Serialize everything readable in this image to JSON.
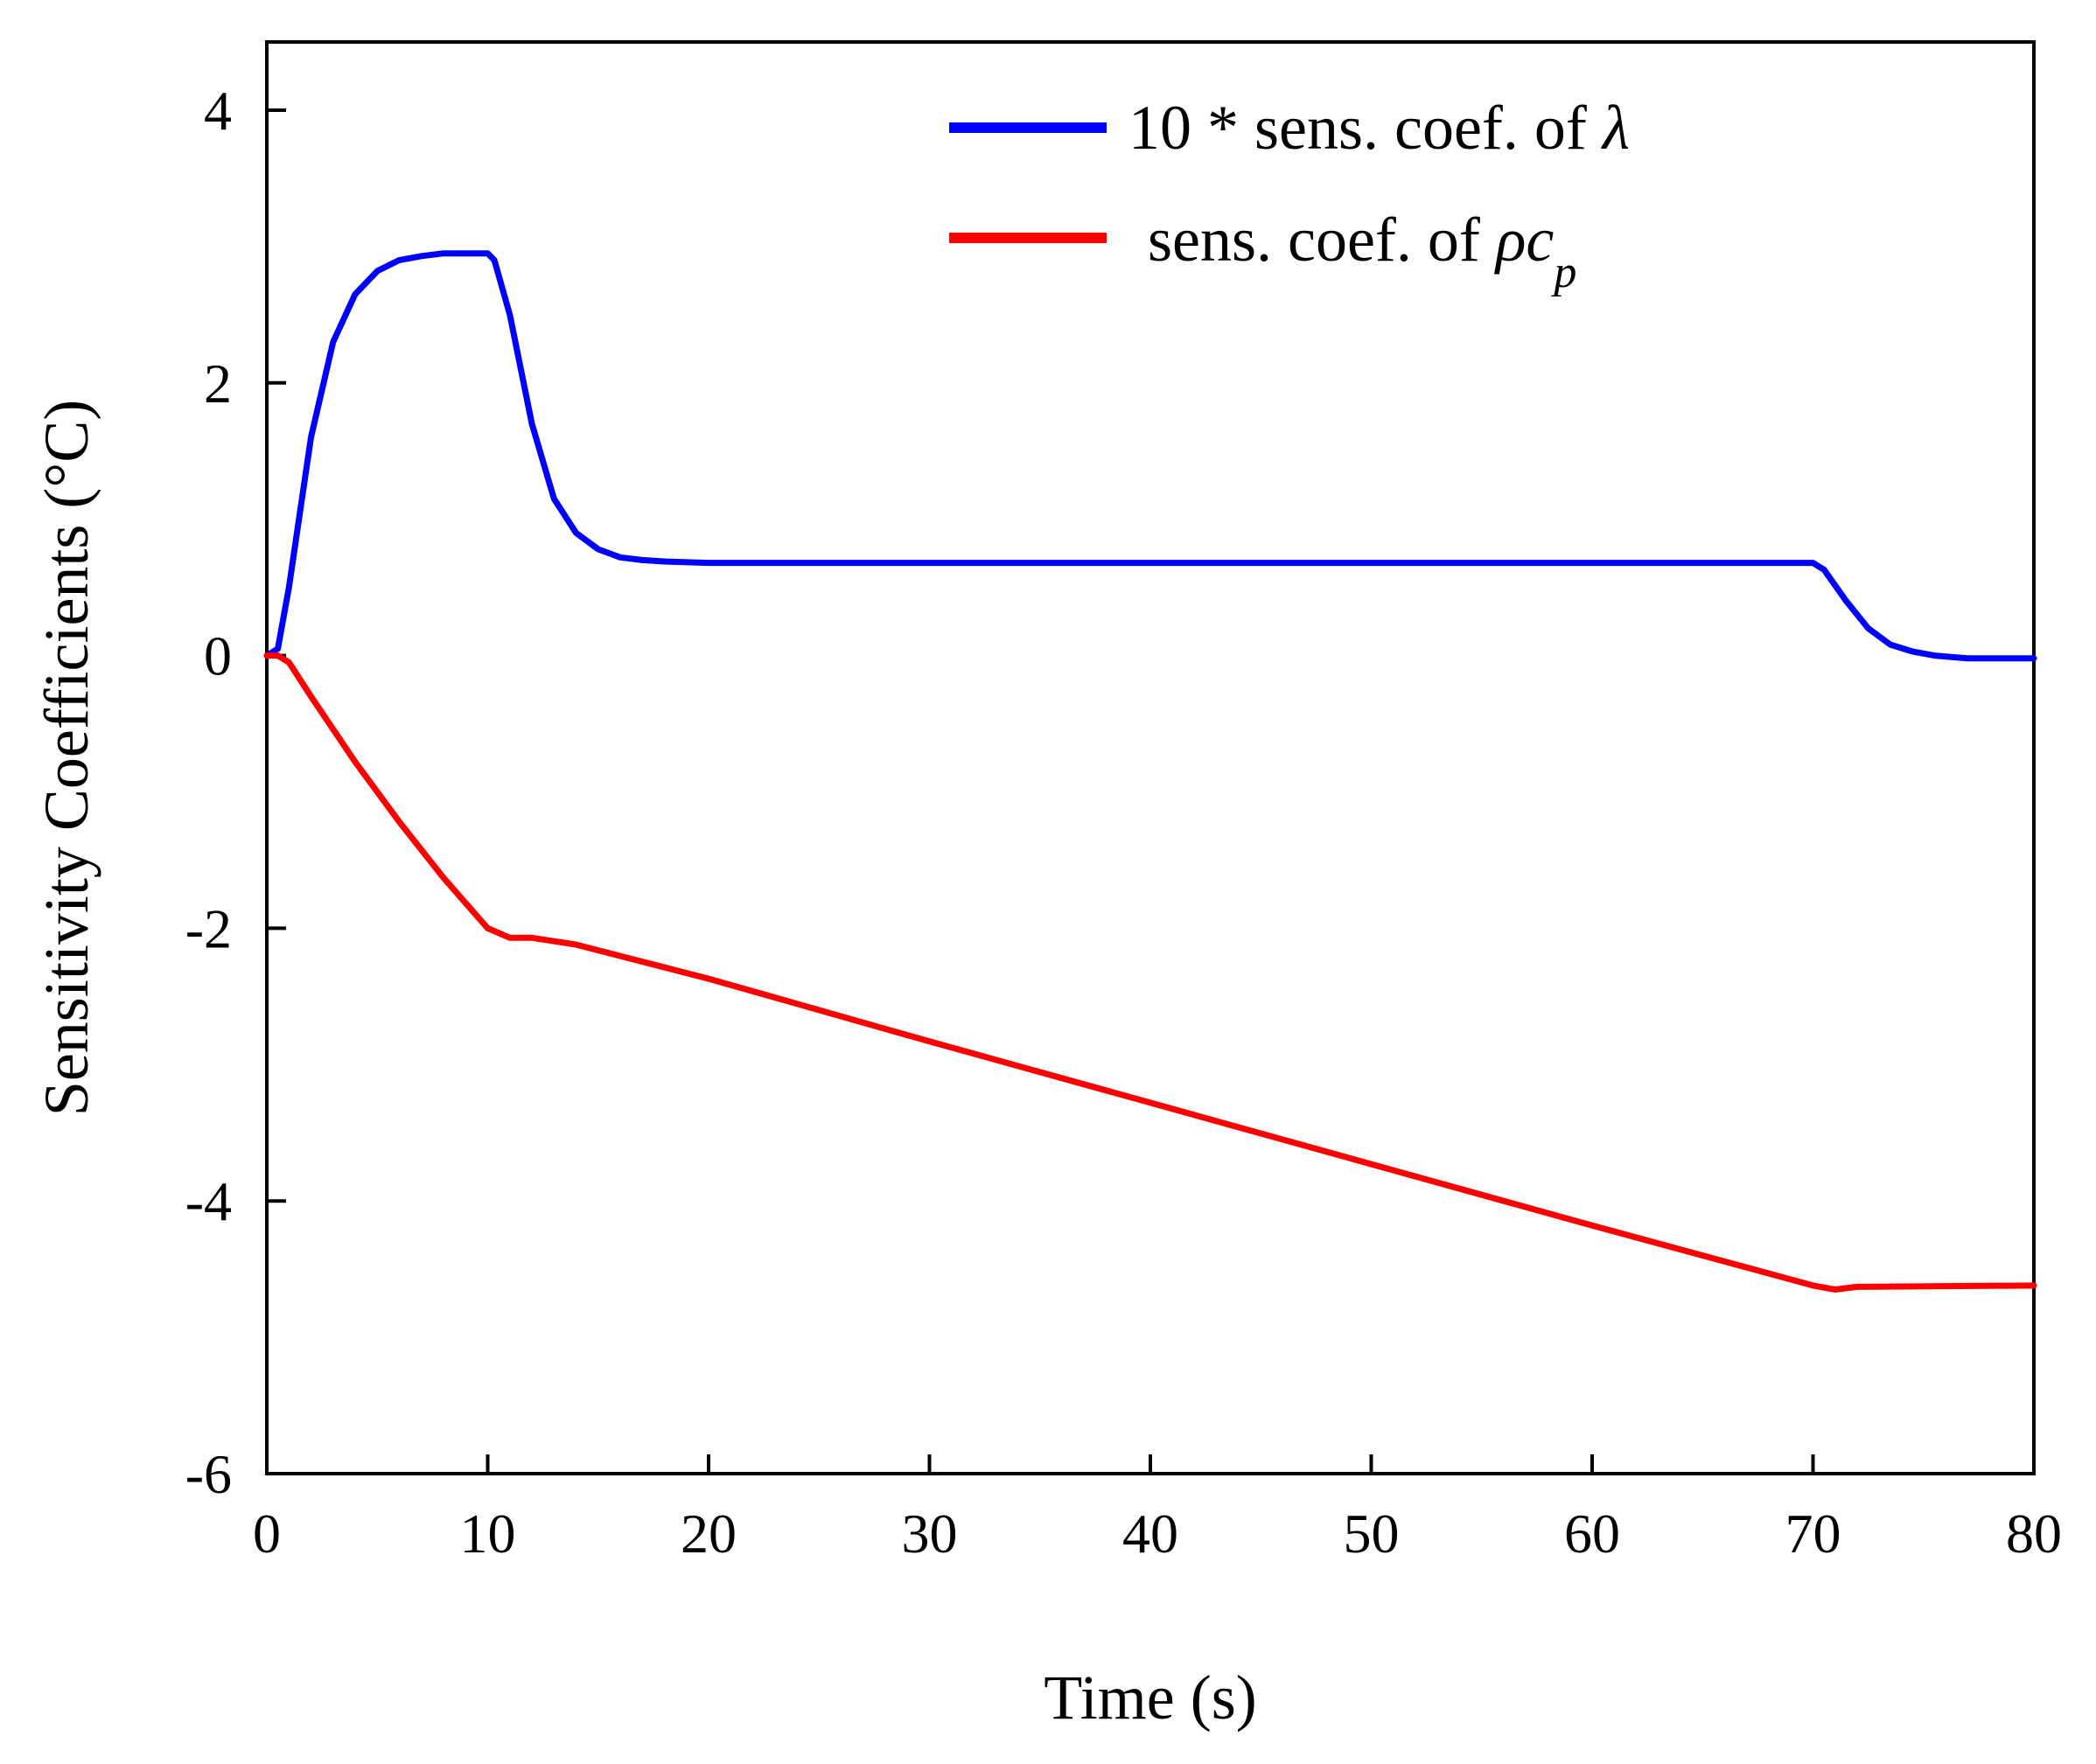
{
  "chart_data": {
    "type": "line",
    "title": "",
    "xlabel": "Time (s)",
    "ylabel": "Sensitivity Coefficients (°C)",
    "xlim": [
      0,
      80
    ],
    "ylim": [
      -6,
      4.5
    ],
    "xticks": [
      "0",
      "10",
      "20",
      "30",
      "40",
      "50",
      "60",
      "70",
      "80"
    ],
    "yticks": [
      "4",
      "2",
      "0",
      "-2",
      "-4",
      "-6"
    ],
    "grid": false,
    "legend_position": "top-right",
    "series": [
      {
        "name": "10 * sens. coef. of λ",
        "legend_prefix": "10 * sens. coef. of ",
        "legend_symbol": "λ",
        "color": "#0000ff",
        "points": [
          [
            0,
            0
          ],
          [
            0.5,
            0.05
          ],
          [
            1,
            0.5
          ],
          [
            2,
            1.6
          ],
          [
            3,
            2.3
          ],
          [
            4,
            2.65
          ],
          [
            5,
            2.82
          ],
          [
            6,
            2.9
          ],
          [
            7,
            2.93
          ],
          [
            8,
            2.95
          ],
          [
            9,
            2.95
          ],
          [
            10,
            2.95
          ],
          [
            10.3,
            2.9
          ],
          [
            11,
            2.5
          ],
          [
            12,
            1.7
          ],
          [
            13,
            1.15
          ],
          [
            14,
            0.9
          ],
          [
            15,
            0.78
          ],
          [
            16,
            0.72
          ],
          [
            17,
            0.7
          ],
          [
            18,
            0.69
          ],
          [
            20,
            0.68
          ],
          [
            30,
            0.68
          ],
          [
            40,
            0.68
          ],
          [
            50,
            0.68
          ],
          [
            60,
            0.68
          ],
          [
            70,
            0.68
          ],
          [
            70.5,
            0.63
          ],
          [
            71.5,
            0.4
          ],
          [
            72.5,
            0.2
          ],
          [
            73.5,
            0.08
          ],
          [
            74.5,
            0.03
          ],
          [
            75.5,
            0.0
          ],
          [
            77,
            -0.02
          ],
          [
            80,
            -0.02
          ]
        ]
      },
      {
        "name": "sens. coef. of ρcp",
        "legend_prefix": "sens. coef. of ",
        "legend_symbol": "ρc",
        "legend_subscript": "p",
        "color": "#ff0000",
        "points": [
          [
            0,
            0
          ],
          [
            0.5,
            0
          ],
          [
            1,
            -0.05
          ],
          [
            2,
            -0.3
          ],
          [
            4,
            -0.78
          ],
          [
            6,
            -1.22
          ],
          [
            8,
            -1.63
          ],
          [
            10,
            -2.0
          ],
          [
            11,
            -2.07
          ],
          [
            12,
            -2.07
          ],
          [
            14,
            -2.12
          ],
          [
            20,
            -2.37
          ],
          [
            30,
            -2.83
          ],
          [
            40,
            -3.28
          ],
          [
            50,
            -3.73
          ],
          [
            60,
            -4.18
          ],
          [
            70,
            -4.62
          ],
          [
            71,
            -4.65
          ],
          [
            72,
            -4.63
          ],
          [
            80,
            -4.62
          ]
        ]
      }
    ]
  }
}
